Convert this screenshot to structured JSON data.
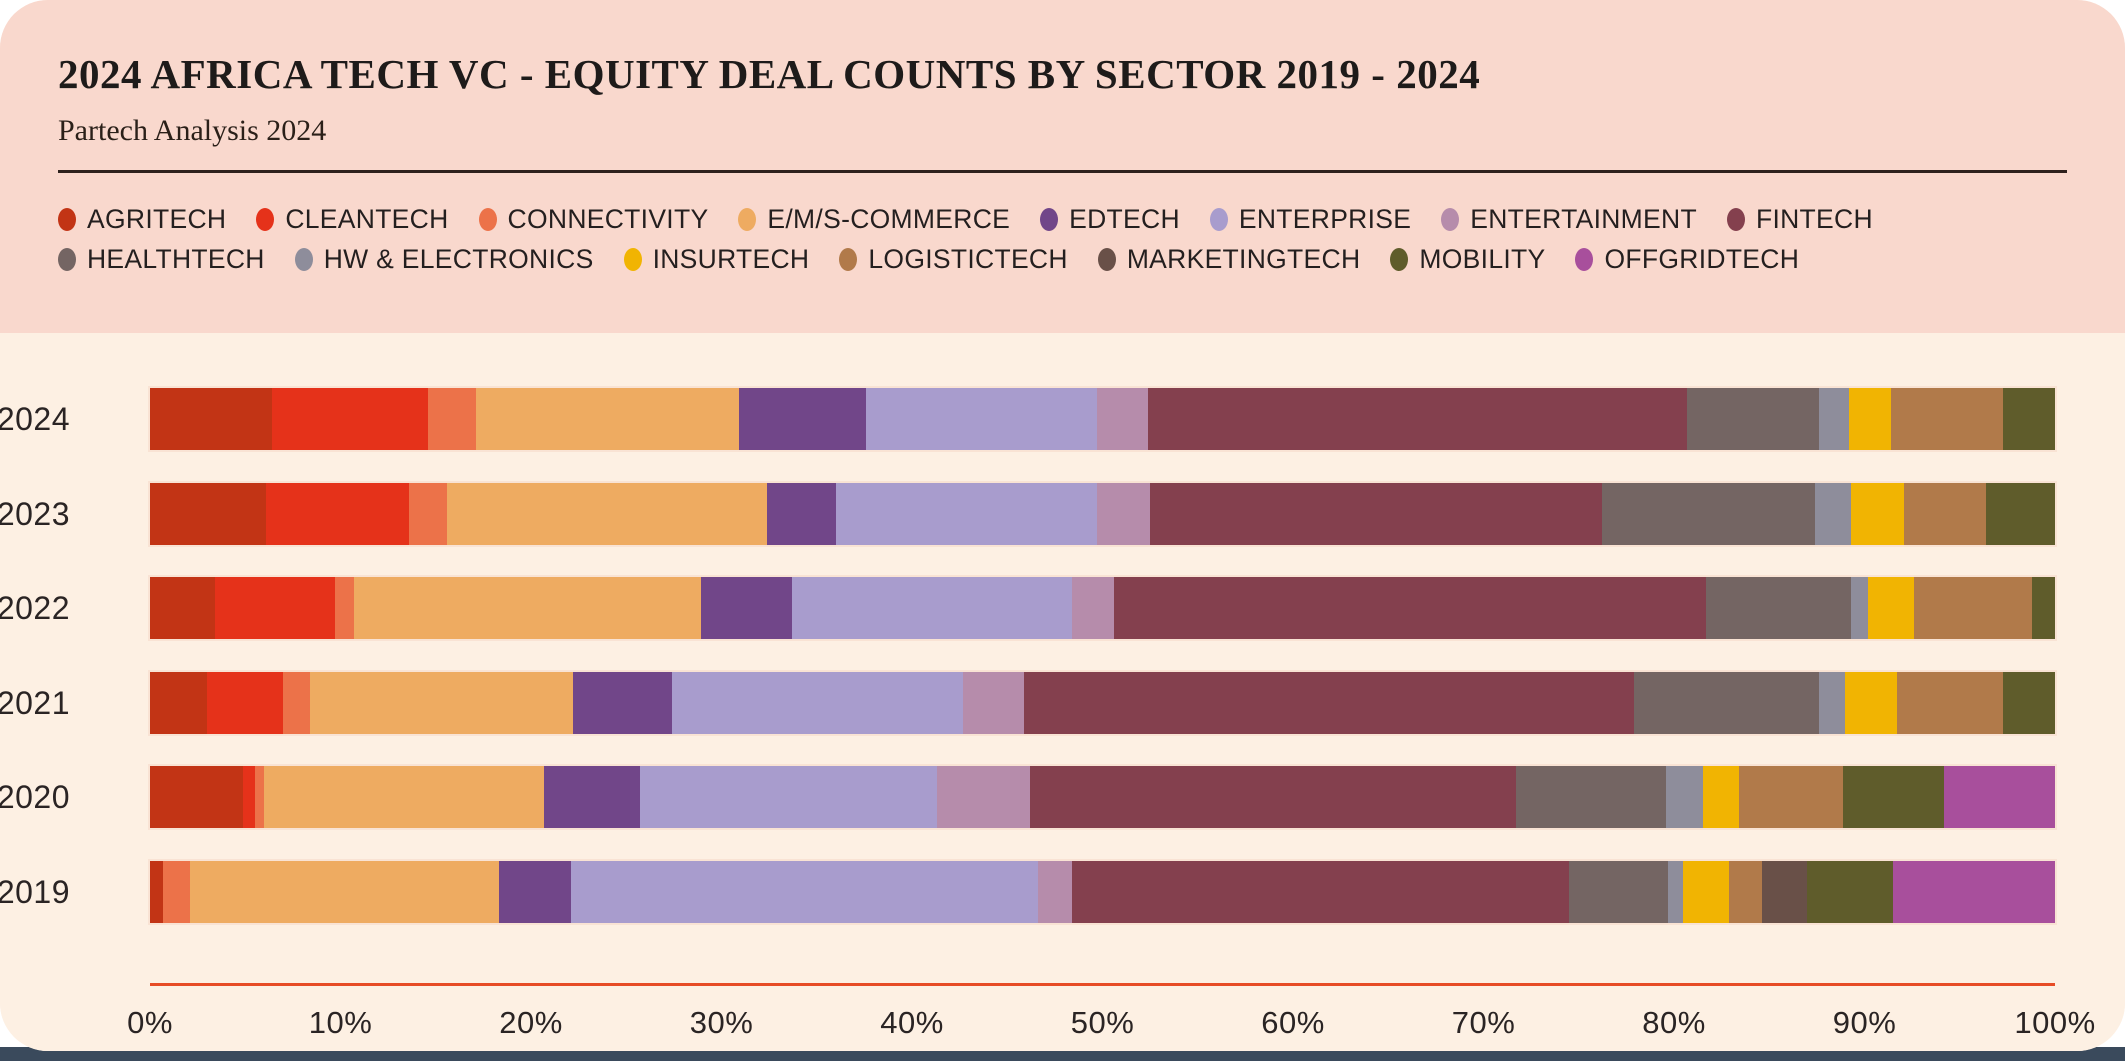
{
  "header": {
    "title": "2024 AFRICA TECH VC - EQUITY DEAL COUNTS BY SECTOR 2019 - 2024",
    "subtitle": "Partech Analysis 2024"
  },
  "colors": {
    "header_background": "#f9d8cd",
    "chart_background": "#fdf0e3",
    "axis_line": "#e74c26",
    "text": "#241f1f",
    "bottom_strip": "#3a4a5c"
  },
  "chart_data": {
    "type": "bar",
    "orientation": "horizontal",
    "stacked": true,
    "unit": "% of equity deal counts",
    "legend_position": "top",
    "xlim": [
      0,
      100
    ],
    "x_ticks": [
      "0%",
      "10%",
      "20%",
      "30%",
      "40%",
      "50%",
      "60%",
      "70%",
      "80%",
      "90%",
      "100%"
    ],
    "sectors": [
      {
        "name": "AGRITECH",
        "color": "#c23415"
      },
      {
        "name": "CLEANTECH",
        "color": "#e5321a"
      },
      {
        "name": "CONNECTIVITY",
        "color": "#ec7249"
      },
      {
        "name": "E/M/S-COMMERCE",
        "color": "#eeab61"
      },
      {
        "name": "EDTECH",
        "color": "#714689"
      },
      {
        "name": "ENTERPRISE",
        "color": "#a89ccd"
      },
      {
        "name": "ENTERTAINMENT",
        "color": "#b68cab"
      },
      {
        "name": "FINTECH",
        "color": "#84404e"
      },
      {
        "name": "HEALTHTECH",
        "color": "#746563"
      },
      {
        "name": "HW & ELECTRONICS",
        "color": "#8e8d9b"
      },
      {
        "name": "INSURTECH",
        "color": "#f1b402"
      },
      {
        "name": "LOGISTICTECH",
        "color": "#b17a4a"
      },
      {
        "name": "MARKETINGTECH",
        "color": "#695048"
      },
      {
        "name": "MOBILITY",
        "color": "#5f5c2b"
      },
      {
        "name": "OFFGRIDTECH",
        "color": "#a84f9c"
      }
    ],
    "categories": [
      "2024",
      "2023",
      "2022",
      "2021",
      "2020",
      "2019"
    ],
    "rows": [
      {
        "year": "2024",
        "values": [
          6.4,
          8.2,
          2.5,
          13.8,
          6.7,
          12.1,
          2.7,
          28.3,
          6.9,
          1.6,
          2.2,
          5.9,
          0,
          2.7,
          0
        ]
      },
      {
        "year": "2023",
        "values": [
          6.1,
          7.5,
          2.0,
          16.8,
          3.6,
          13.7,
          2.8,
          23.7,
          11.2,
          1.9,
          2.8,
          4.3,
          0,
          3.6,
          0
        ]
      },
      {
        "year": "2022",
        "values": [
          3.4,
          6.3,
          1.0,
          18.2,
          4.8,
          14.7,
          2.2,
          31.1,
          7.6,
          0.9,
          2.4,
          6.2,
          0,
          1.2,
          0
        ]
      },
      {
        "year": "2021",
        "values": [
          3.0,
          4.0,
          1.4,
          13.8,
          5.2,
          15.3,
          3.2,
          32.0,
          9.7,
          1.4,
          2.7,
          5.6,
          0,
          2.7,
          0
        ]
      },
      {
        "year": "2020",
        "values": [
          4.9,
          0.6,
          0.5,
          14.7,
          5.0,
          15.6,
          4.9,
          25.5,
          7.9,
          1.9,
          1.9,
          5.5,
          0,
          5.3,
          5.8
        ]
      },
      {
        "year": "2019",
        "values": [
          0.7,
          0,
          1.4,
          16.2,
          3.8,
          24.5,
          1.8,
          26.1,
          5.2,
          0.8,
          2.4,
          1.7,
          2.4,
          4.5,
          8.5
        ]
      }
    ]
  }
}
